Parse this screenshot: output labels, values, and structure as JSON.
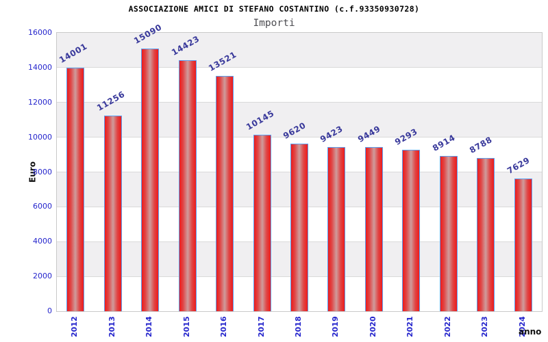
{
  "chart_data": {
    "type": "bar",
    "title": "ASSOCIAZIONE AMICI DI STEFANO COSTANTINO (c.f.93350930728)",
    "subtitle": "Importi",
    "categories": [
      "2012",
      "2013",
      "2014",
      "2015",
      "2016",
      "2017",
      "2018",
      "2019",
      "2020",
      "2021",
      "2022",
      "2023",
      "2024"
    ],
    "values": [
      14001,
      11256,
      15090,
      14423,
      13521,
      10145,
      9620,
      9423,
      9449,
      9293,
      8914,
      8788,
      7629
    ],
    "xlabel": "anno",
    "ylabel": "Euro",
    "ylim": [
      0,
      16000
    ],
    "yticks": [
      0,
      2000,
      4000,
      6000,
      8000,
      10000,
      12000,
      14000,
      16000
    ],
    "grid": true,
    "legend": null,
    "value_labels_shown": true,
    "value_label_angle_deg": -30,
    "x_label_angle_deg": -90
  },
  "colors": {
    "bar_red": "#ed1b1b",
    "bar_gradient_mid": "#e04545",
    "bar_highlight": "#cf9c9c",
    "bar_border": "#5a9ef0",
    "axis_tick_text": "#2424cc",
    "value_label_text": "#39399b",
    "band_gray": "#f0eff1",
    "band_white": "#ffffff",
    "grid_line": "#d9d9d9",
    "plot_border": "#c9c9c9",
    "title_text": "#000000",
    "subtitle_text": "#4d4d52",
    "axis_title_text": "#111111"
  }
}
